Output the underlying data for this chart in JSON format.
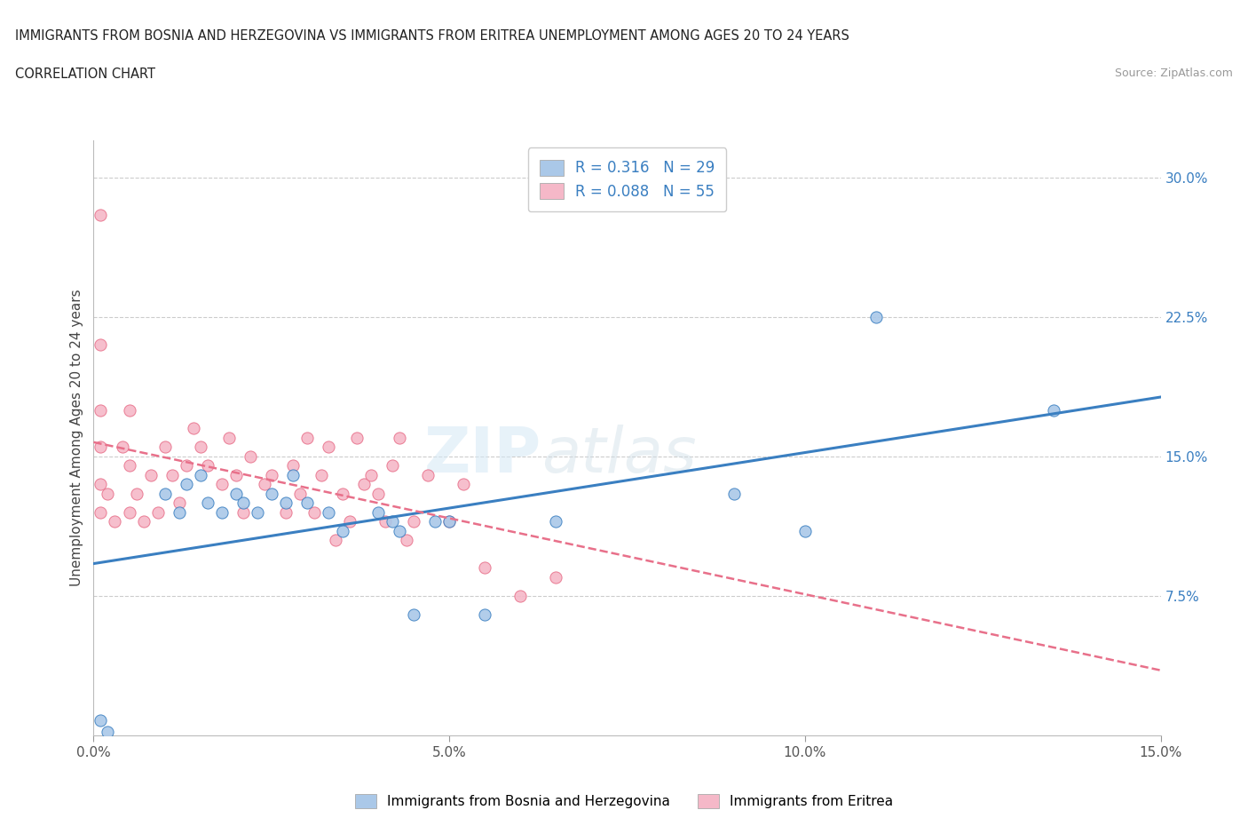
{
  "title_line1": "IMMIGRANTS FROM BOSNIA AND HERZEGOVINA VS IMMIGRANTS FROM ERITREA UNEMPLOYMENT AMONG AGES 20 TO 24 YEARS",
  "title_line2": "CORRELATION CHART",
  "source_text": "Source: ZipAtlas.com",
  "ylabel": "Unemployment Among Ages 20 to 24 years",
  "xlim": [
    0.0,
    0.15
  ],
  "ylim": [
    0.0,
    0.32
  ],
  "xticks": [
    0.0,
    0.05,
    0.1,
    0.15
  ],
  "xticklabels": [
    "0.0%",
    "5.0%",
    "10.0%",
    "15.0%"
  ],
  "ytick_right_labels": [
    "7.5%",
    "15.0%",
    "22.5%",
    "30.0%"
  ],
  "ytick_right_values": [
    0.075,
    0.15,
    0.225,
    0.3
  ],
  "r_bosnia": 0.316,
  "n_bosnia": 29,
  "r_eritrea": 0.088,
  "n_eritrea": 55,
  "color_bosnia": "#aac8e8",
  "color_eritrea": "#f5b8c8",
  "line_color_bosnia": "#3a7fc1",
  "line_color_eritrea": "#e8708a",
  "watermark_zip": "ZIP",
  "watermark_atlas": "atlas",
  "legend_r_color": "#3a7fc1",
  "bosnia_scatter_x": [
    0.001,
    0.002,
    0.01,
    0.012,
    0.013,
    0.015,
    0.016,
    0.018,
    0.02,
    0.021,
    0.023,
    0.025,
    0.027,
    0.028,
    0.03,
    0.033,
    0.035,
    0.04,
    0.042,
    0.043,
    0.045,
    0.048,
    0.05,
    0.055,
    0.065,
    0.09,
    0.1,
    0.11,
    0.135
  ],
  "bosnia_scatter_y": [
    0.008,
    0.002,
    0.13,
    0.12,
    0.135,
    0.14,
    0.125,
    0.12,
    0.13,
    0.125,
    0.12,
    0.13,
    0.125,
    0.14,
    0.125,
    0.12,
    0.11,
    0.12,
    0.115,
    0.11,
    0.065,
    0.115,
    0.115,
    0.065,
    0.115,
    0.13,
    0.11,
    0.225,
    0.175
  ],
  "eritrea_scatter_x": [
    0.001,
    0.001,
    0.001,
    0.001,
    0.001,
    0.001,
    0.002,
    0.003,
    0.004,
    0.005,
    0.005,
    0.005,
    0.006,
    0.007,
    0.008,
    0.009,
    0.01,
    0.011,
    0.012,
    0.013,
    0.014,
    0.015,
    0.016,
    0.018,
    0.019,
    0.02,
    0.021,
    0.022,
    0.024,
    0.025,
    0.027,
    0.028,
    0.029,
    0.03,
    0.031,
    0.032,
    0.033,
    0.034,
    0.035,
    0.036,
    0.037,
    0.038,
    0.039,
    0.04,
    0.041,
    0.042,
    0.043,
    0.044,
    0.045,
    0.047,
    0.05,
    0.052,
    0.055,
    0.06,
    0.065
  ],
  "eritrea_scatter_y": [
    0.28,
    0.21,
    0.175,
    0.155,
    0.135,
    0.12,
    0.13,
    0.115,
    0.155,
    0.175,
    0.145,
    0.12,
    0.13,
    0.115,
    0.14,
    0.12,
    0.155,
    0.14,
    0.125,
    0.145,
    0.165,
    0.155,
    0.145,
    0.135,
    0.16,
    0.14,
    0.12,
    0.15,
    0.135,
    0.14,
    0.12,
    0.145,
    0.13,
    0.16,
    0.12,
    0.14,
    0.155,
    0.105,
    0.13,
    0.115,
    0.16,
    0.135,
    0.14,
    0.13,
    0.115,
    0.145,
    0.16,
    0.105,
    0.115,
    0.14,
    0.115,
    0.135,
    0.09,
    0.075,
    0.085
  ]
}
